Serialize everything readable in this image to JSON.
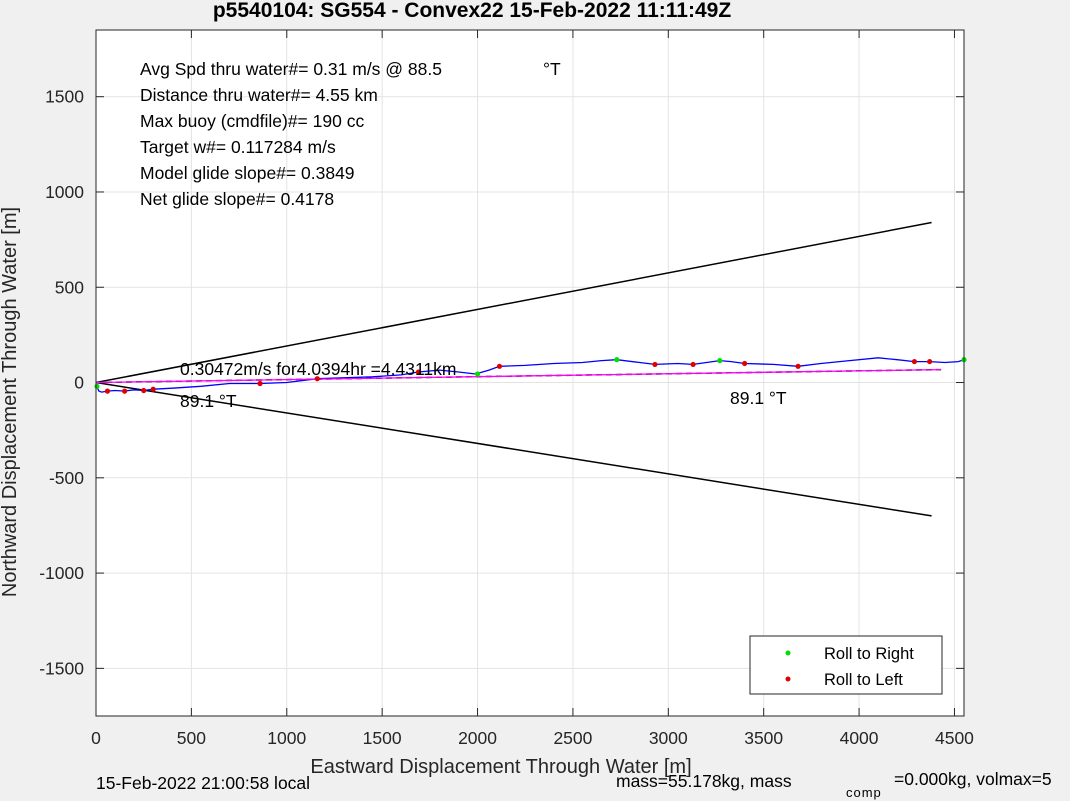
{
  "chart_data": {
    "type": "line",
    "title": "p5540104: SG554 - Convex22 15-Feb-2022 11:11:49Z",
    "xlabel": "Eastward Displacement Through Water [m]",
    "ylabel": "Northward Displacement Through Water [m]",
    "xlim": [
      0,
      4550
    ],
    "ylim": [
      -1750,
      1850
    ],
    "xticks": [
      0,
      500,
      1000,
      1500,
      2000,
      2500,
      3000,
      3500,
      4000,
      4500
    ],
    "yticks": [
      -1500,
      -1000,
      -500,
      0,
      500,
      1000,
      1500
    ],
    "xtick_labels": [
      "0",
      "500",
      "1000",
      "1500",
      "2000",
      "2500",
      "3000",
      "3500",
      "4000",
      "4500"
    ],
    "ytick_labels": [
      "-1500",
      "-1000",
      "-500",
      "0",
      "500",
      "1000",
      "1500"
    ],
    "grid": true,
    "legend_position": "bottom-right",
    "colors": {
      "track": "#0000ff",
      "mean_line": "#ff00ff",
      "dashed": "#000000",
      "right": "#00e000",
      "left": "#e00000",
      "cone": "#000000"
    },
    "series": [
      {
        "name": "track",
        "x": [
          0,
          5,
          15,
          30,
          60,
          100,
          150,
          200,
          250,
          300,
          400,
          550,
          700,
          860,
          1000,
          1160,
          1300,
          1450,
          1600,
          1690,
          1800,
          1900,
          1990,
          2060,
          2115,
          2250,
          2400,
          2550,
          2650,
          2730,
          2850,
          2930,
          3050,
          3130,
          3200,
          3270,
          3330,
          3400,
          3550,
          3680,
          3800,
          3950,
          4100,
          4200,
          4290,
          4370,
          4450,
          4520,
          4550
        ],
        "y": [
          -10,
          -25,
          -45,
          -50,
          -45,
          -42,
          -45,
          -38,
          -42,
          -35,
          -30,
          -20,
          -5,
          -5,
          0,
          20,
          25,
          30,
          40,
          55,
          65,
          55,
          45,
          65,
          85,
          90,
          100,
          105,
          115,
          120,
          105,
          95,
          100,
          95,
          105,
          115,
          110,
          100,
          95,
          85,
          100,
          115,
          130,
          120,
          110,
          110,
          105,
          110,
          120
        ]
      },
      {
        "name": "cone-upper",
        "x": [
          0,
          4380
        ],
        "y": [
          0,
          840
        ]
      },
      {
        "name": "cone-lower",
        "x": [
          0,
          4380
        ],
        "y": [
          0,
          -700
        ]
      },
      {
        "name": "mean-track",
        "x": [
          0,
          4430
        ],
        "y": [
          0,
          68
        ]
      },
      {
        "name": "Roll to Right",
        "x": [
          5,
          2000,
          2730,
          3270,
          4550
        ],
        "y": [
          -20,
          45,
          120,
          115,
          120
        ]
      },
      {
        "name": "Roll to Left",
        "x": [
          60,
          150,
          250,
          300,
          860,
          1160,
          1690,
          2115,
          2930,
          3130,
          3400,
          3680,
          4290,
          4370
        ],
        "y": [
          -45,
          -45,
          -42,
          -35,
          -5,
          20,
          55,
          85,
          95,
          95,
          100,
          85,
          110,
          110
        ]
      }
    ],
    "annotations": {
      "avg_spd": "Avg Spd thru water#=  0.31 m/s @  88.5",
      "avg_spd_unit": "°T",
      "distance": "Distance thru water#=  4.55 km",
      "max_buoy": "Max buoy (cmdfile)#= 190 cc",
      "target_w": "Target w#= 0.117284 m/s",
      "model_glide": "Model glide slope#= 0.3849",
      "net_glide": "Net glide slope#= 0.4178",
      "track_summary": "0.30472m/s for4.0394hr =4.4311km",
      "heading_left": "89.1  °T",
      "heading_right": "89.1  °T"
    },
    "legend": [
      {
        "label": "Roll to Right",
        "color": "#00e000"
      },
      {
        "label": "Roll to Left",
        "color": "#e00000"
      }
    ]
  },
  "footer": {
    "local_time": "15-Feb-2022 21:00:58 local",
    "mass": "mass=55.178kg, mass",
    "comp": "comp",
    "mass_comp": "=0.000kg, volmax=5"
  }
}
